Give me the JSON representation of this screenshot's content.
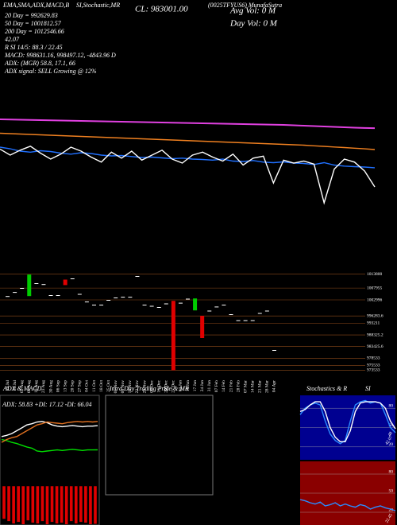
{
  "header": {
    "items": [
      "EMA,SMA,ADX,MACD,B",
      "SI,Stochastic,MR",
      "(0025TFYUS6) MunafaSutra"
    ],
    "cl": "CL: 983001.00",
    "avg_vol": "Avg Vol: 0  M",
    "day_vol": "Day Vol: 0  M",
    "lines": [
      "20 Day = 992629.83",
      "50 Day = 1001812.57",
      "200 Day = 1012546.66",
      "42.07",
      "R        SI 14/5: 88.3 / 22.45",
      "MACD: 998631.16, 998497.12, -4843.96  D",
      "ADX:              (MGR) 58.8, 17.1, 66",
      "ADX  signal: SELL Growing @ 12%"
    ]
  },
  "panels": {
    "adx_macd": "ADX  & MACD",
    "intraday": "Intra Day Trading Price  & MR",
    "si1": "SI",
    "stoch": "Stochastics & R",
    "si2": "SI"
  },
  "chart_data": [
    {
      "type": "line",
      "ylim": [
        945000,
        1077000
      ],
      "series": [
        {
          "name": "200 Day",
          "color": "#e040e0",
          "values": [
            1017000,
            1016900,
            1016800,
            1016700,
            1016600,
            1016500,
            1016400,
            1016300,
            1016200,
            1016100,
            1016000,
            1015900,
            1015800,
            1015700,
            1015600,
            1015500,
            1015400,
            1015300,
            1015200,
            1015100,
            1015000,
            1014900,
            1014800,
            1014700,
            1014600,
            1014500,
            1014400,
            1014300,
            1014200,
            1014000,
            1013800,
            1013600,
            1013400,
            1013200,
            1013000,
            1012800,
            1012650,
            1012547
          ]
        },
        {
          "name": "50 Day",
          "color": "#f08020",
          "values": [
            1010000,
            1009800,
            1009600,
            1009400,
            1009200,
            1009000,
            1008800,
            1008600,
            1008400,
            1008200,
            1008000,
            1007800,
            1007600,
            1007400,
            1007200,
            1007000,
            1006800,
            1006600,
            1006400,
            1006200,
            1006000,
            1005800,
            1005600,
            1005400,
            1005200,
            1005000,
            1004800,
            1004600,
            1004400,
            1004200,
            1004000,
            1003700,
            1003400,
            1003100,
            1002800,
            1002500,
            1002150,
            1001813
          ]
        },
        {
          "name": "20 Day",
          "color": "#2070ff",
          "values": [
            1003000,
            1002200,
            1001000,
            1000500,
            1001200,
            1000800,
            1000000,
            999500,
            1000200,
            999800,
            999000,
            998600,
            998800,
            998300,
            997800,
            998000,
            997600,
            997200,
            997500,
            997000,
            996800,
            996500,
            997000,
            996000,
            995800,
            996300,
            995500,
            995200,
            995600,
            995000,
            994800,
            994300,
            995200,
            994000,
            993500,
            993200,
            993000,
            992630
          ]
        },
        {
          "name": "Close",
          "color": "#ffffff",
          "values": [
            1002000,
            999000,
            1001500,
            1003500,
            1000000,
            997000,
            999500,
            1003000,
            1001000,
            998000,
            995500,
            1000500,
            997500,
            1001000,
            996500,
            999000,
            1001500,
            997000,
            995000,
            999000,
            1000500,
            998000,
            996000,
            999500,
            994000,
            997500,
            998500,
            985000,
            996500,
            995000,
            996000,
            994500,
            975000,
            992000,
            997000,
            995500,
            991000,
            983001
          ]
        }
      ]
    },
    {
      "type": "candlestick",
      "ylim": [
        972000,
        1016000
      ],
      "yticks": [
        1013800,
        1007955,
        1002996,
        996283.6,
        993211,
        988325.2,
        983425.6,
        978533,
        975533,
        973533
      ],
      "up_color": "#00cc00",
      "down_color": "#e00000",
      "flat_color": "#ffffff",
      "categories": [
        "19 Jul",
        "26 Jul",
        "02 Aug",
        "09 Aug",
        "16 Aug",
        "23 Aug",
        "30 Aug",
        "06 Sep",
        "13 Sep",
        "20 Sep",
        "27 Sep",
        "04 Oct",
        "11 Oct",
        "18 Oct",
        "25 Oct",
        "01 Nov",
        "08 Nov",
        "15 Nov",
        "22 Nov",
        "29 Nov",
        "06 Dec",
        "13 Dec",
        "20 Dec",
        "27 Dec",
        "03 Jan",
        "10 Jan",
        "17 Jan",
        "24 Jan",
        "31 Jan",
        "07 Feb",
        "14 Feb",
        "21 Feb",
        "28 Feb",
        "07 Mar",
        "14 Mar",
        "21 Mar",
        "28 Mar",
        "04 Apr"
      ],
      "open": [
        1004600,
        1006300,
        1008000,
        1004600,
        1010000,
        1009600,
        1005000,
        1005000,
        1011500,
        1012000,
        1005500,
        1002300,
        1001000,
        1001000,
        1003000,
        1004000,
        1004300,
        1004300,
        1013000,
        1001000,
        1000500,
        1000000,
        1001500,
        1002600,
        1001800,
        1003500,
        998600,
        996300,
        998500,
        1000200,
        1001000,
        997000,
        994500,
        994500,
        994500,
        997500,
        998500,
        982000
      ],
      "close": [
        1004600,
        1006300,
        1008000,
        1013600,
        1010000,
        1009600,
        1005000,
        1005000,
        1009200,
        1012000,
        1005500,
        1002300,
        1001000,
        1001000,
        1003000,
        1004000,
        1004300,
        1004300,
        1013000,
        1001000,
        1000500,
        1000000,
        1001500,
        973533,
        1001800,
        1003500,
        1003600,
        987000,
        998500,
        1000200,
        1001000,
        997000,
        994500,
        994500,
        994500,
        997500,
        998500,
        982000
      ]
    },
    {
      "type": "line",
      "title": "ADX: 58.83 +DI: 17.12 -DI: 66.04",
      "ylim": [
        0,
        100
      ],
      "series": [
        {
          "name": "ADX",
          "color": "#ffffff",
          "values": [
            40,
            42,
            45,
            50,
            55,
            60,
            62,
            65,
            66,
            64,
            60,
            58,
            57,
            58,
            59,
            58,
            57,
            58,
            58,
            58.83
          ]
        },
        {
          "name": "+DI",
          "color": "#00dd00",
          "values": [
            35,
            33,
            30,
            28,
            25,
            22,
            20,
            15,
            14,
            15,
            16,
            17,
            16,
            17,
            18,
            17,
            16,
            17,
            17,
            17.12
          ]
        },
        {
          "name": "-DI",
          "color": "#e07020",
          "values": [
            30,
            35,
            38,
            40,
            45,
            50,
            55,
            60,
            62,
            65,
            64,
            63,
            62,
            64,
            65,
            66,
            65,
            66,
            65,
            66.04
          ]
        }
      ]
    },
    {
      "type": "bar",
      "ylim": [
        -5000,
        3000
      ],
      "color": "#e00000",
      "values": [
        -4200,
        -4500,
        -4800,
        -4600,
        -4900,
        -4400,
        -4700,
        -4800,
        -4500,
        -4900,
        -4600,
        -4800,
        -4700,
        -4900,
        -4500,
        -4800,
        -4600,
        -4700,
        -4900,
        -4843.96
      ]
    },
    {
      "type": "line",
      "ylim": [
        0,
        100
      ],
      "yticks": [
        80,
        50,
        20
      ],
      "background": "#000090",
      "series": [
        {
          "name": "%K",
          "color": "#2a8cff",
          "values": [
            70,
            80,
            85,
            88,
            85,
            60,
            40,
            30,
            25,
            30,
            60,
            85,
            90,
            92,
            88,
            90,
            88,
            70,
            50,
            42.07
          ]
        },
        {
          "name": "%D",
          "color": "#ffffff",
          "values": [
            75,
            78,
            85,
            90,
            90,
            75,
            50,
            35,
            28,
            28,
            45,
            75,
            88,
            90,
            90,
            90,
            88,
            80,
            60,
            48
          ]
        }
      ]
    },
    {
      "type": "line",
      "ylim": [
        0,
        100
      ],
      "yticks": [
        80,
        50,
        20
      ],
      "background": "#8a0000",
      "series": [
        {
          "name": "RSI",
          "color": "#2a8cff",
          "values": [
            40,
            38,
            35,
            33,
            36,
            30,
            32,
            35,
            30,
            33,
            30,
            28,
            32,
            30,
            25,
            28,
            30,
            27,
            25,
            22.45
          ]
        }
      ]
    }
  ]
}
